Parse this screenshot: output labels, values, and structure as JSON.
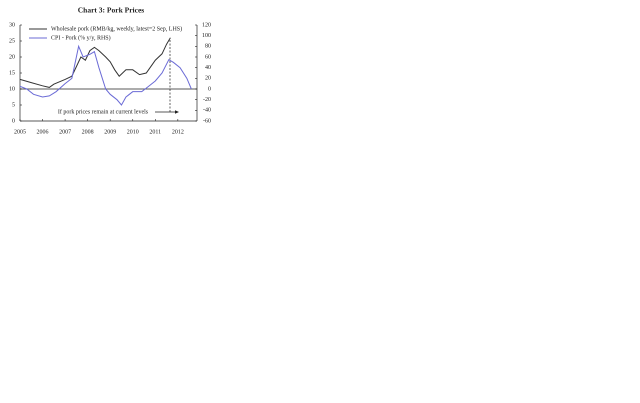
{
  "chart_data": {
    "type": "line",
    "title": "Chart 3: Pork Prices",
    "xlim": [
      2005,
      2012.85
    ],
    "xticks": [
      2005,
      2006,
      2007,
      2008,
      2009,
      2010,
      2011,
      2012
    ],
    "ylim": [
      0,
      30
    ],
    "yticks": [
      0,
      5,
      10,
      15,
      20,
      25,
      30
    ],
    "y2lim": [
      -60,
      120
    ],
    "y2ticks": [
      -60,
      -40,
      -20,
      0,
      20,
      40,
      60,
      80,
      100,
      120
    ],
    "annotation": "If pork prices remain at current levels",
    "series": [
      {
        "name": "Wholesale pork (RMB/kg, weekly, latest=2 Sep, LHS)",
        "color": "#333333",
        "x": [
          2005,
          2005.5,
          2006,
          2006.3,
          2006.5,
          2007,
          2007.3,
          2007.5,
          2007.7,
          2007.9,
          2008.1,
          2008.3,
          2008.5,
          2008.8,
          2009,
          2009.2,
          2009.4,
          2009.7,
          2010,
          2010.3,
          2010.6,
          2010.9,
          2011,
          2011.3,
          2011.5,
          2011.67
        ],
        "values": [
          13,
          12,
          11,
          10.5,
          11.5,
          13,
          14,
          17,
          20,
          19,
          22,
          23,
          22,
          20,
          18.5,
          16,
          14,
          16,
          16,
          14.5,
          15,
          18,
          19,
          21,
          24,
          26
        ]
      },
      {
        "name": "CPI - Pork (% y/y, RHS)",
        "color": "#6b6bd6",
        "axis": "y2",
        "x": [
          2005,
          2005.3,
          2005.6,
          2006,
          2006.3,
          2006.6,
          2007,
          2007.3,
          2007.5,
          2007.6,
          2007.8,
          2008.1,
          2008.3,
          2008.5,
          2008.8,
          2009,
          2009.3,
          2009.5,
          2009.7,
          2010,
          2010.4,
          2010.7,
          2011,
          2011.3,
          2011.6,
          2011.8,
          2012.1,
          2012.4,
          2012.6
        ],
        "values": [
          5,
          0,
          -10,
          -15,
          -13,
          -5,
          10,
          20,
          60,
          80,
          60,
          65,
          70,
          40,
          0,
          -10,
          -20,
          -30,
          -15,
          -5,
          -5,
          5,
          15,
          30,
          55,
          50,
          40,
          20,
          0
        ]
      }
    ]
  }
}
